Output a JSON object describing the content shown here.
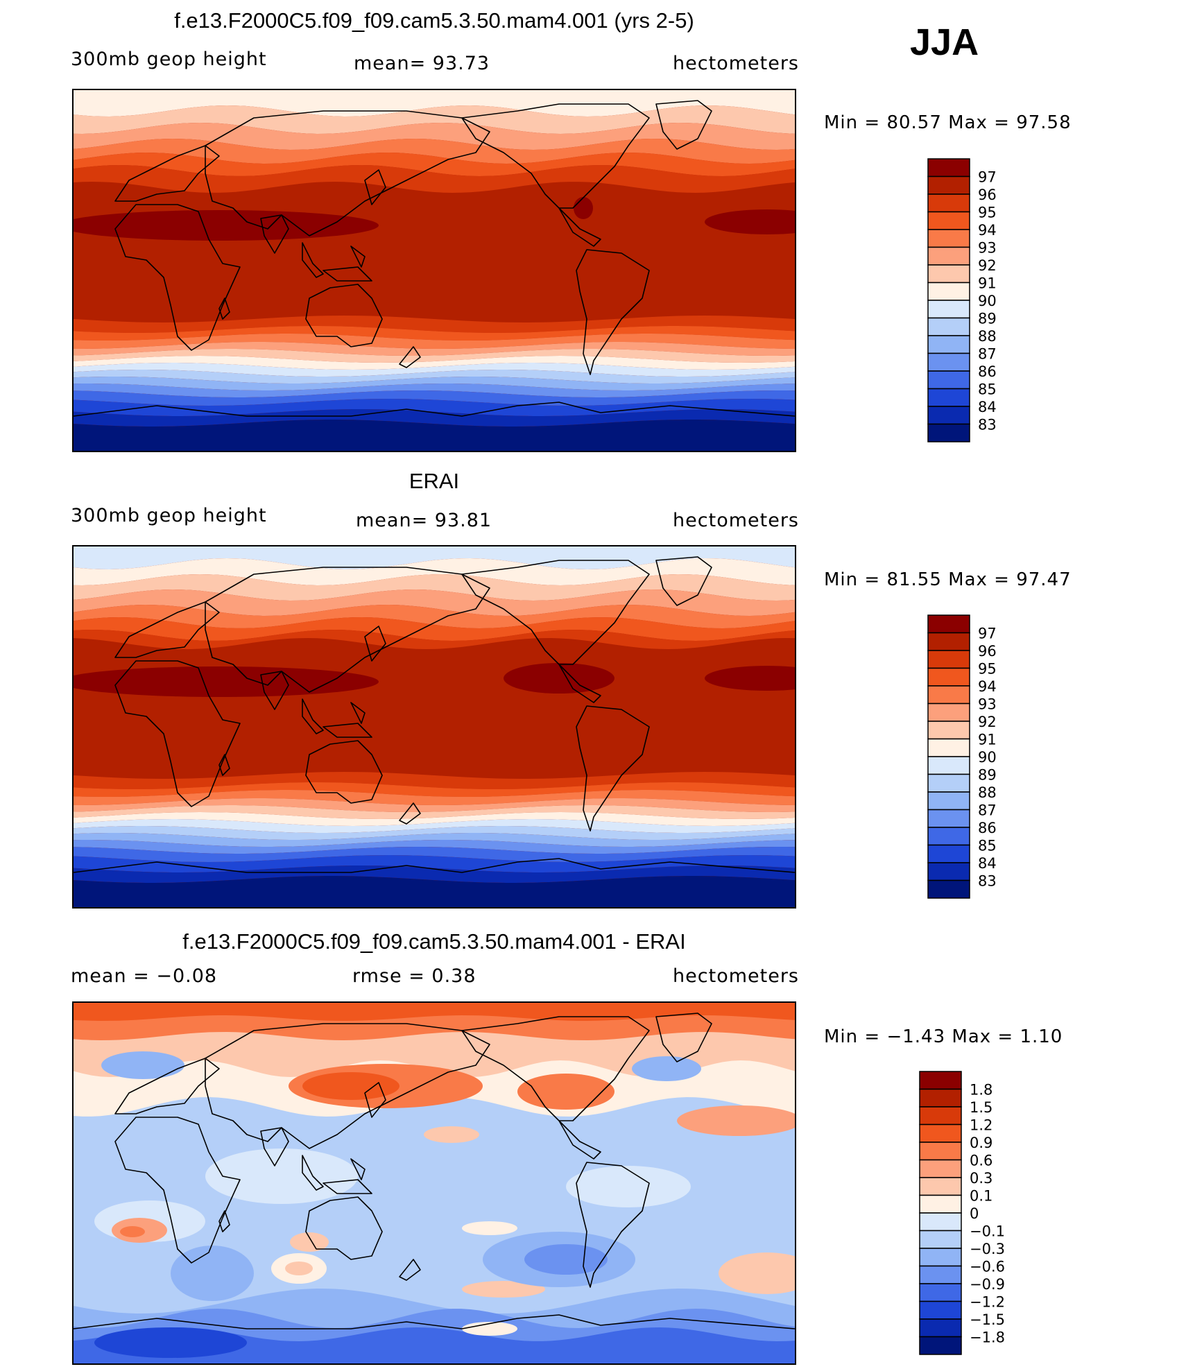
{
  "season": "JJA",
  "panels": [
    {
      "id": "model",
      "title": "f.e13.F2000C5.f09_f09.cam5.3.50.mam4.001 (yrs 2-5)",
      "left_label": "300mb  geop  height",
      "center_label": "mean=   93.73",
      "units": "hectometers",
      "minmax": "Min  =    80.57  Max  =    97.58",
      "min": 80.57,
      "max": 97.58,
      "colorbar": {
        "labels": [
          "97",
          "96",
          "95",
          "94",
          "93",
          "92",
          "91",
          "90",
          "89",
          "88",
          "87",
          "86",
          "85",
          "84",
          "83"
        ],
        "colors": [
          "#8b0000",
          "#b22000",
          "#d83a0a",
          "#f0571e",
          "#f97a48",
          "#fca07c",
          "#fdc8ad",
          "#fff1e4",
          "#d9e8fb",
          "#b4cff8",
          "#90b4f5",
          "#6b92f0",
          "#3f68e6",
          "#1e46d6",
          "#0a2ab0",
          "#00157a"
        ]
      }
    },
    {
      "id": "obs",
      "title": "ERAI",
      "left_label": "300mb  geop  height",
      "center_label": "mean=   93.81",
      "units": "hectometers",
      "minmax": "Min  =    81.55  Max  =    97.47",
      "min": 81.55,
      "max": 97.47,
      "colorbar": {
        "labels": [
          "97",
          "96",
          "95",
          "94",
          "93",
          "92",
          "91",
          "90",
          "89",
          "88",
          "87",
          "86",
          "85",
          "84",
          "83"
        ],
        "colors": [
          "#8b0000",
          "#b22000",
          "#d83a0a",
          "#f0571e",
          "#f97a48",
          "#fca07c",
          "#fdc8ad",
          "#fff1e4",
          "#d9e8fb",
          "#b4cff8",
          "#90b4f5",
          "#6b92f0",
          "#3f68e6",
          "#1e46d6",
          "#0a2ab0",
          "#00157a"
        ]
      }
    },
    {
      "id": "diff",
      "title": "f.e13.F2000C5.f09_f09.cam5.3.50.mam4.001 - ERAI",
      "left_label": "mean  =    −0.08",
      "center_label": "rmse  =     0.38",
      "units": "hectometers",
      "minmax": "Min  =    −1.43  Max  =      1.10",
      "min": -1.43,
      "max": 1.1,
      "colorbar": {
        "labels": [
          "1.8",
          "1.5",
          "1.2",
          "0.9",
          "0.6",
          "0.3",
          "0.1",
          "0",
          "−0.1",
          "−0.3",
          "−0.6",
          "−0.9",
          "−1.2",
          "−1.5",
          "−1.8"
        ],
        "colors": [
          "#8b0000",
          "#b22000",
          "#d83a0a",
          "#f0571e",
          "#f97a48",
          "#fca07c",
          "#fdc8ad",
          "#fff1e4",
          "#d9e8fb",
          "#b4cff8",
          "#90b4f5",
          "#6b92f0",
          "#3f68e6",
          "#1e46d6",
          "#0a2ab0",
          "#00157a"
        ]
      }
    }
  ]
}
